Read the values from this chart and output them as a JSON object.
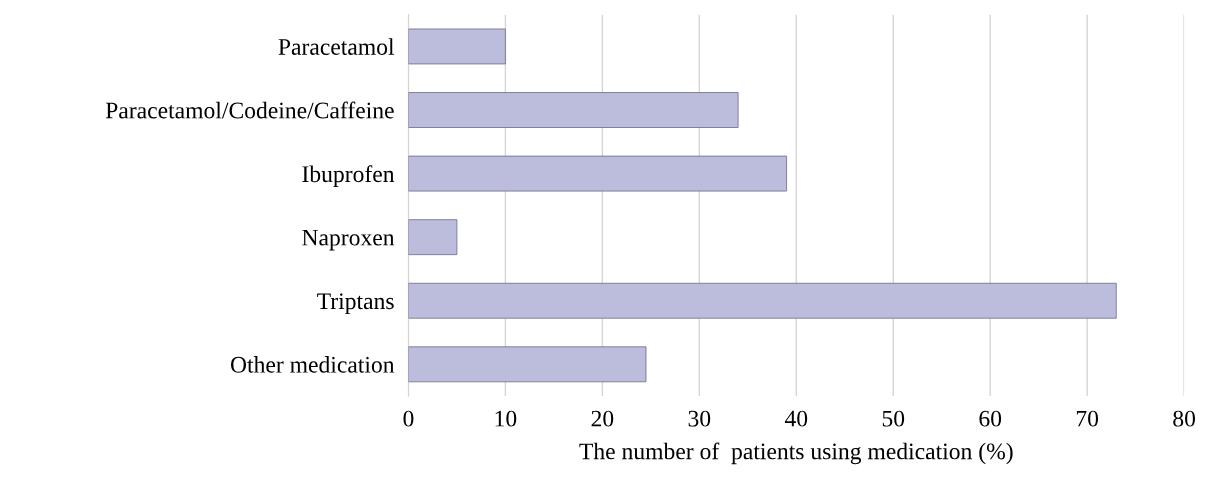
{
  "chart_data": {
    "type": "bar",
    "orientation": "horizontal",
    "xlabel": "The number of  patients using medication (%)",
    "categories": [
      "Paracetamol",
      "Paracetamol/Codeine/Caffeine",
      "Ibuprofen",
      "Naproxen",
      "Triptans",
      "Other medication"
    ],
    "values": [
      10,
      34,
      39,
      5,
      73,
      24.5
    ],
    "color": "#bcbcdc",
    "xlim": [
      0,
      80
    ],
    "xticks": [
      0,
      10,
      20,
      30,
      40,
      50,
      60,
      70,
      80
    ],
    "grid": "x"
  }
}
